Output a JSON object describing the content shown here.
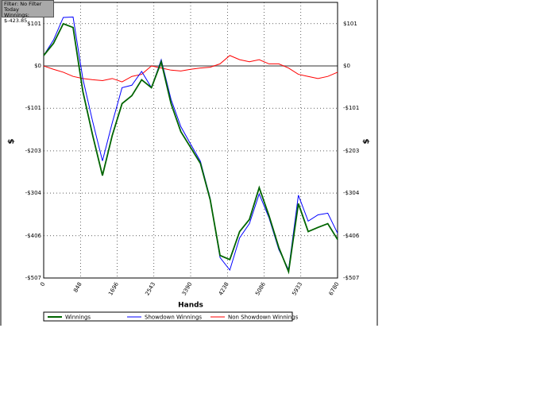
{
  "info": {
    "filter": "Filter: No Filter",
    "period": "Today",
    "winnings": "Winnings: $-423.85"
  },
  "chart_data": {
    "type": "line",
    "xlabel": "Hands",
    "ylabel": "$",
    "y2label": "$",
    "x": [
      0,
      226,
      452,
      678,
      904,
      1130,
      1356,
      1582,
      1808,
      2034,
      2260,
      2486,
      2712,
      2938,
      3164,
      3390,
      3616,
      3842,
      4068,
      4294,
      4520,
      4746,
      4972,
      5198,
      5424,
      5650,
      5876,
      6102,
      6328,
      6554,
      6780
    ],
    "series": [
      {
        "name": "Winnings",
        "color": "#006400",
        "values": [
          25,
          54,
          101,
          92,
          -61,
          -166,
          -262,
          -166,
          -90,
          -71,
          -33,
          -52,
          10,
          -90,
          -157,
          -195,
          -233,
          -320,
          -453,
          -463,
          -396,
          -367,
          -291,
          -358,
          -434,
          -492,
          -329,
          -396,
          -386,
          -377,
          -415
        ]
      },
      {
        "name": "Showdown Winnings",
        "color": "#0000ff",
        "values": [
          25,
          62,
          116,
          117,
          -31,
          -133,
          -227,
          -136,
          -52,
          -46,
          -13,
          -52,
          15,
          -80,
          -145,
          -187,
          -228,
          -317,
          -458,
          -488,
          -411,
          -377,
          -306,
          -363,
          -439,
          -487,
          -309,
          -371,
          -356,
          -352,
          -400
        ]
      },
      {
        "name": "Non Showdown Winnings",
        "color": "#ff0000",
        "values": [
          0,
          -8,
          -15,
          -25,
          -30,
          -33,
          -35,
          -30,
          -38,
          -25,
          -20,
          0,
          -5,
          -10,
          -12,
          -8,
          -5,
          -3,
          5,
          25,
          15,
          10,
          15,
          5,
          5,
          -5,
          -20,
          -25,
          -30,
          -25,
          -15
        ]
      }
    ],
    "xlim": [
      0,
      6780
    ],
    "xticks": [
      0,
      848,
      1696,
      2543,
      3390,
      4238,
      5086,
      5933,
      6780
    ],
    "ylim": [
      -507,
      152
    ],
    "yticks": [
      {
        "value": 101,
        "label": "$101"
      },
      {
        "value": 0,
        "label": "$0"
      },
      {
        "value": -101,
        "label": "-$101"
      },
      {
        "value": -203,
        "label": "-$203"
      },
      {
        "value": -304,
        "label": "-$304"
      },
      {
        "value": -406,
        "label": "-$406"
      },
      {
        "value": -507,
        "label": "-$507"
      }
    ],
    "grid": true
  }
}
